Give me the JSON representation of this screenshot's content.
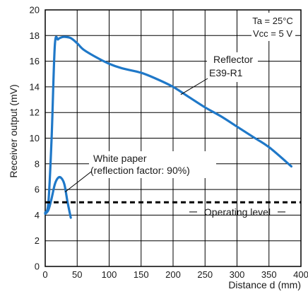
{
  "chart_data": {
    "type": "line",
    "xlabel": "Distance d (mm)",
    "ylabel": "Receiver output (mV)",
    "xlim": [
      0,
      400
    ],
    "ylim": [
      0,
      20
    ],
    "x_ticks": [
      0,
      50,
      100,
      150,
      200,
      250,
      300,
      350,
      400
    ],
    "y_ticks": [
      0,
      2,
      4,
      6,
      8,
      10,
      12,
      14,
      16,
      18,
      20
    ],
    "grid": true,
    "conditions": [
      "Ta = 25°C",
      "Vcc = 5 V"
    ],
    "series": [
      {
        "name": "Reflector E39-R1",
        "label_lines": [
          "Reflector",
          "E39-R1"
        ],
        "color": "#1f78c8",
        "points": [
          [
            0,
            4.2
          ],
          [
            5,
            5.0
          ],
          [
            10,
            10.0
          ],
          [
            15,
            17.2
          ],
          [
            20,
            17.7
          ],
          [
            25,
            17.85
          ],
          [
            30,
            17.9
          ],
          [
            40,
            17.8
          ],
          [
            50,
            17.4
          ],
          [
            60,
            16.9
          ],
          [
            80,
            16.3
          ],
          [
            100,
            15.8
          ],
          [
            120,
            15.45
          ],
          [
            150,
            15.1
          ],
          [
            175,
            14.6
          ],
          [
            200,
            14.0
          ],
          [
            225,
            13.2
          ],
          [
            250,
            12.4
          ],
          [
            275,
            11.7
          ],
          [
            300,
            10.9
          ],
          [
            325,
            10.1
          ],
          [
            350,
            9.3
          ],
          [
            385,
            7.8
          ]
        ]
      },
      {
        "name": "White paper (reflection factor: 90%)",
        "label_lines": [
          "White paper",
          "(reflection factor: 90%)"
        ],
        "color": "#1f78c8",
        "points": [
          [
            0,
            4.1
          ],
          [
            5,
            4.4
          ],
          [
            10,
            5.3
          ],
          [
            15,
            6.4
          ],
          [
            20,
            6.9
          ],
          [
            25,
            6.9
          ],
          [
            30,
            6.4
          ],
          [
            35,
            5.0
          ],
          [
            40,
            3.8
          ]
        ]
      }
    ],
    "reference_lines": [
      {
        "name": "Operating level",
        "y": 5.0,
        "style": "dashed",
        "color": "#000000"
      }
    ]
  }
}
